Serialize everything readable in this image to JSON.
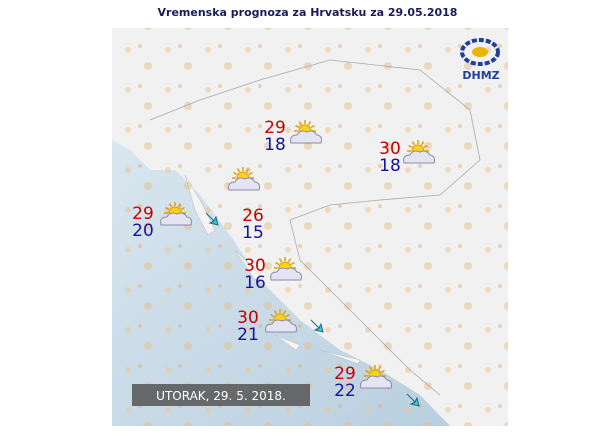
{
  "header": {
    "title": "Vremenska prognoza za Hrvatsku za 29.05.2018"
  },
  "logo": {
    "text": "DHMZ"
  },
  "map": {
    "date_label": "UTORAK, 29. 5. 2018.",
    "forecasts": [
      {
        "max": 29,
        "min": 18
      },
      {
        "max": 30,
        "min": 18
      },
      {
        "max": 29,
        "min": 20
      },
      {
        "max": 26,
        "min": 15
      },
      {
        "max": 30,
        "min": 16
      },
      {
        "max": 30,
        "min": 21
      },
      {
        "max": 29,
        "min": 22
      }
    ]
  }
}
